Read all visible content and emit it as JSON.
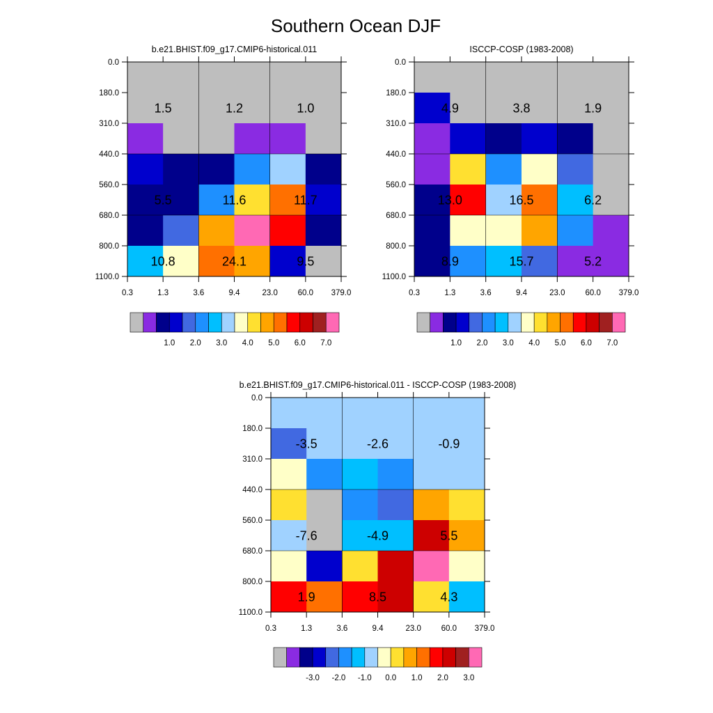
{
  "page": {
    "title": "Southern Ocean DJF"
  },
  "colors": {
    "mask": "#bebebe",
    "palette": [
      "#bebebe",
      "#8a2be2",
      "#00008b",
      "#0000cd",
      "#4169e1",
      "#1e90ff",
      "#00bfff",
      "#a0d2ff",
      "#ffffc8",
      "#ffe030",
      "#ffa500",
      "#ff7000",
      "#ff0000",
      "#cd0000",
      "#a02020",
      "#ff69b4"
    ],
    "text": "#000000"
  },
  "chart_data": [
    {
      "type": "heatmap",
      "title": "b.e21.BHIST.f09_g17.CMIP6-historical.011",
      "x_ticks": [
        "0.3",
        "1.3",
        "3.6",
        "9.4",
        "23.0",
        "60.0",
        "379.0"
      ],
      "y_ticks": [
        "0.0",
        "180.0",
        "310.0",
        "440.0",
        "560.0",
        "680.0",
        "800.0",
        "1100.0"
      ],
      "cells": [
        [
          0,
          0,
          0,
          0,
          0,
          0
        ],
        [
          0,
          0,
          0,
          0,
          0,
          0
        ],
        [
          1,
          0,
          0,
          1,
          1,
          0
        ],
        [
          3,
          2,
          2,
          5,
          7,
          2
        ],
        [
          2,
          2,
          5,
          9,
          11,
          3
        ],
        [
          2,
          4,
          10,
          15,
          12,
          2
        ],
        [
          6,
          8,
          11,
          10,
          3,
          0
        ]
      ],
      "block_labels": [
        {
          "text": "1.5",
          "row": 1,
          "col": 0
        },
        {
          "text": "1.2",
          "row": 1,
          "col": 1
        },
        {
          "text": "1.0",
          "row": 1,
          "col": 2
        },
        {
          "text": "5.5",
          "row": 4,
          "col": 0
        },
        {
          "text": "11.6",
          "row": 4,
          "col": 1
        },
        {
          "text": "11.7",
          "row": 4,
          "col": 2
        },
        {
          "text": "10.8",
          "row": 6,
          "col": 0
        },
        {
          "text": "24.1",
          "row": 6,
          "col": 1
        },
        {
          "text": "9.5",
          "row": 6,
          "col": 2
        }
      ],
      "colorbar": {
        "labels": [
          "1.0",
          "2.0",
          "3.0",
          "4.0",
          "5.0",
          "6.0",
          "7.0"
        ]
      }
    },
    {
      "type": "heatmap",
      "title": "ISCCP-COSP (1983-2008)",
      "x_ticks": [
        "0.3",
        "1.3",
        "3.6",
        "9.4",
        "23.0",
        "60.0",
        "379.0"
      ],
      "y_ticks": [
        "0.0",
        "180.0",
        "310.0",
        "440.0",
        "560.0",
        "680.0",
        "800.0",
        "1100.0"
      ],
      "cells": [
        [
          0,
          0,
          0,
          0,
          0,
          0
        ],
        [
          3,
          0,
          0,
          0,
          0,
          0
        ],
        [
          1,
          3,
          2,
          3,
          2,
          0
        ],
        [
          1,
          9,
          5,
          8,
          4,
          0
        ],
        [
          2,
          12,
          7,
          11,
          6,
          0
        ],
        [
          2,
          8,
          8,
          10,
          5,
          1
        ],
        [
          2,
          5,
          6,
          4,
          1,
          1
        ]
      ],
      "block_labels": [
        {
          "text": "4.9",
          "row": 1,
          "col": 0
        },
        {
          "text": "3.8",
          "row": 1,
          "col": 1
        },
        {
          "text": "1.9",
          "row": 1,
          "col": 2
        },
        {
          "text": "13.0",
          "row": 4,
          "col": 0
        },
        {
          "text": "16.5",
          "row": 4,
          "col": 1
        },
        {
          "text": "6.2",
          "row": 4,
          "col": 2
        },
        {
          "text": "8.9",
          "row": 6,
          "col": 0
        },
        {
          "text": "15.7",
          "row": 6,
          "col": 1
        },
        {
          "text": "5.2",
          "row": 6,
          "col": 2
        }
      ],
      "colorbar": {
        "labels": [
          "1.0",
          "2.0",
          "3.0",
          "4.0",
          "5.0",
          "6.0",
          "7.0"
        ]
      }
    },
    {
      "type": "heatmap",
      "title": "b.e21.BHIST.f09_g17.CMIP6-historical.011 - ISCCP-COSP (1983-2008)",
      "x_ticks": [
        "0.3",
        "1.3",
        "3.6",
        "9.4",
        "23.0",
        "60.0",
        "379.0"
      ],
      "y_ticks": [
        "0.0",
        "180.0",
        "310.0",
        "440.0",
        "560.0",
        "680.0",
        "800.0",
        "1100.0"
      ],
      "cells": [
        [
          7,
          7,
          7,
          7,
          7,
          7
        ],
        [
          4,
          7,
          7,
          7,
          7,
          7
        ],
        [
          8,
          5,
          6,
          5,
          7,
          7
        ],
        [
          9,
          0,
          5,
          4,
          10,
          9
        ],
        [
          7,
          0,
          6,
          6,
          13,
          10
        ],
        [
          8,
          3,
          9,
          13,
          15,
          8
        ],
        [
          12,
          11,
          12,
          13,
          9,
          6
        ]
      ],
      "block_labels": [
        {
          "text": "-3.5",
          "row": 1,
          "col": 0
        },
        {
          "text": "-2.6",
          "row": 1,
          "col": 1
        },
        {
          "text": "-0.9",
          "row": 1,
          "col": 2
        },
        {
          "text": "-7.6",
          "row": 4,
          "col": 0
        },
        {
          "text": "-4.9",
          "row": 4,
          "col": 1
        },
        {
          "text": "5.5",
          "row": 4,
          "col": 2
        },
        {
          "text": "1.9",
          "row": 6,
          "col": 0
        },
        {
          "text": "8.5",
          "row": 6,
          "col": 1
        },
        {
          "text": "4.3",
          "row": 6,
          "col": 2
        }
      ],
      "colorbar": {
        "labels": [
          "-3.0",
          "-2.0",
          "-1.0",
          "0.0",
          "1.0",
          "2.0",
          "3.0"
        ]
      }
    }
  ]
}
